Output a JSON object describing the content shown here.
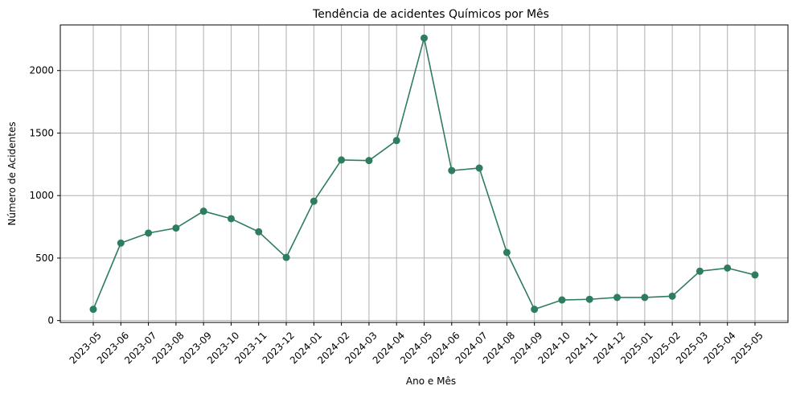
{
  "chart_data": {
    "type": "line",
    "title": "Tendência de acidentes Químicos por Mês",
    "xlabel": "Ano e Mês",
    "ylabel": "Número de Acidentes",
    "categories": [
      "2023-05",
      "2023-06",
      "2023-07",
      "2023-08",
      "2023-09",
      "2023-10",
      "2023-11",
      "2023-12",
      "2024-01",
      "2024-02",
      "2024-03",
      "2024-04",
      "2024-05",
      "2024-06",
      "2024-07",
      "2024-08",
      "2024-09",
      "2024-10",
      "2024-11",
      "2024-12",
      "2025-01",
      "2025-02",
      "2025-03",
      "2025-04",
      "2025-05"
    ],
    "values": [
      90,
      620,
      700,
      740,
      875,
      815,
      710,
      505,
      955,
      1285,
      1280,
      1440,
      2260,
      1200,
      1220,
      545,
      90,
      165,
      170,
      185,
      185,
      195,
      395,
      420,
      365
    ],
    "yticks": [
      0,
      500,
      1000,
      1500,
      2000
    ],
    "ylim": [
      -15,
      2365
    ],
    "grid": true,
    "line_color": "#2e7d5e",
    "marker": "circle"
  }
}
